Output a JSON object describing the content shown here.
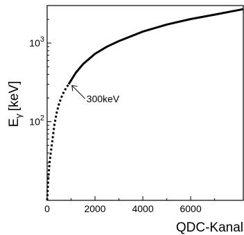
{
  "chart_data": {
    "type": "line",
    "title": "",
    "xlabel": "QDC-Kanal",
    "ylabel": "E",
    "ylabel_subscript": "γ",
    "ylabel_unit": "[keV]",
    "xlim": [
      0,
      8200
    ],
    "ylim": [
      10,
      3000
    ],
    "y_scale": "log",
    "grid": false,
    "x_ticks": [
      0,
      2000,
      4000,
      6000
    ],
    "x_tick_labels": [
      "0",
      "2000",
      "4000",
      "6000"
    ],
    "y_ticks": [
      100,
      1000
    ],
    "y_tick_labels": [
      {
        "base": "10",
        "exp": "2"
      },
      {
        "base": "10",
        "exp": "3"
      }
    ],
    "series": [
      {
        "style": "dotted",
        "color": "#000000",
        "x": [
          0,
          20,
          50,
          100,
          150,
          200,
          300,
          400,
          500,
          600,
          700,
          800,
          900
        ],
        "y": [
          10,
          13,
          19,
          30,
          40,
          52,
          90,
          130,
          170,
          205,
          240,
          270,
          300
        ]
      },
      {
        "style": "solid",
        "color": "#000000",
        "x": [
          900,
          1200,
          1500,
          2000,
          2500,
          3000,
          4000,
          5000,
          6000,
          7000,
          8200
        ],
        "y": [
          300,
          420,
          540,
          730,
          900,
          1060,
          1400,
          1720,
          2020,
          2300,
          2700
        ]
      }
    ],
    "annotations": [
      {
        "text": "300keV",
        "x": 950,
        "y": 300
      }
    ]
  }
}
